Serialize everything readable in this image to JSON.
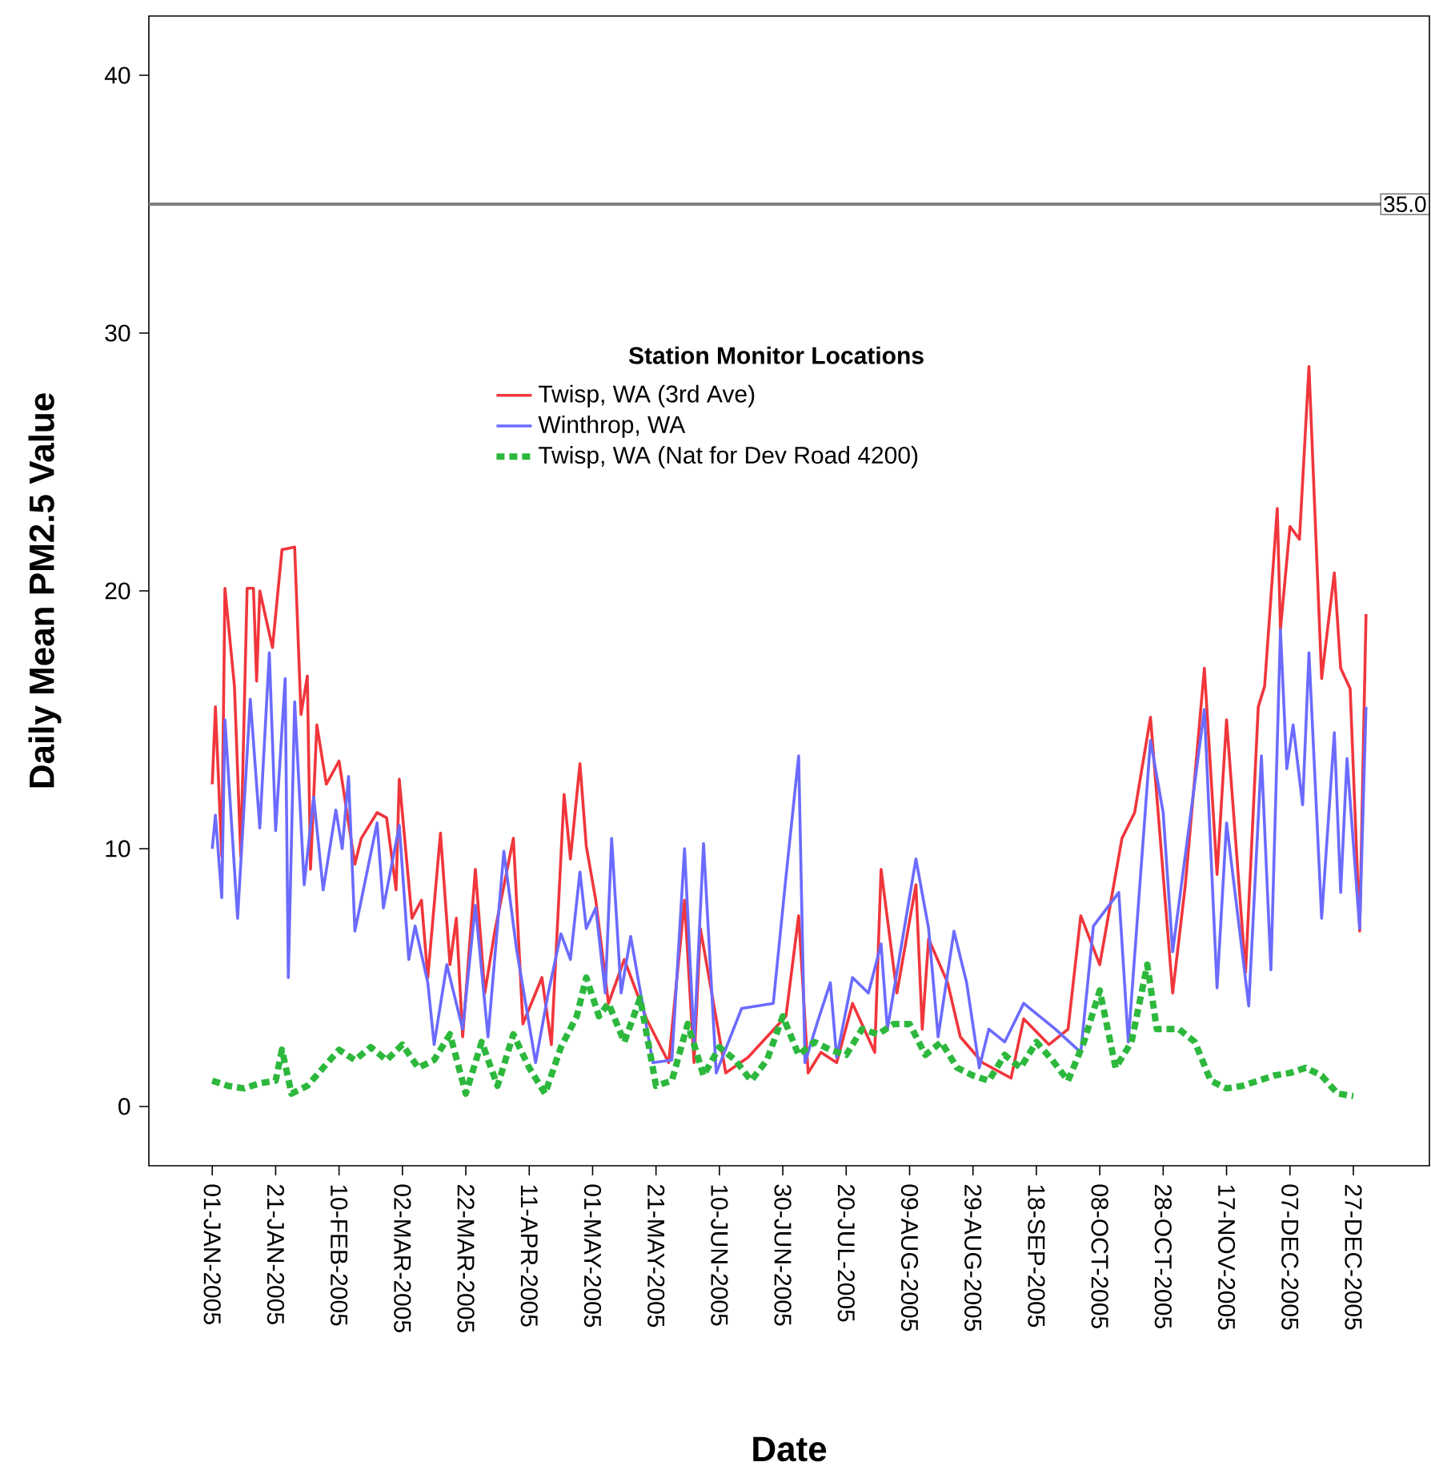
{
  "chart_data": {
    "type": "line",
    "xlabel": "Date",
    "ylabel": "Daily Mean PM2.5 Value",
    "legend_title": "Station Monitor Locations",
    "legend": "top",
    "grid": false,
    "marker": "none",
    "xlim": [
      "2004-12-12",
      "2006-01-20"
    ],
    "ylim": [
      -2.3,
      42.3
    ],
    "yticks": [
      0,
      10,
      20,
      30,
      40
    ],
    "xticks": [
      {
        "value": "2005-01-01",
        "label": "01-JAN-2005"
      },
      {
        "value": "2005-01-21",
        "label": "21-JAN-2005"
      },
      {
        "value": "2005-02-10",
        "label": "10-FEB-2005"
      },
      {
        "value": "2005-03-02",
        "label": "02-MAR-2005"
      },
      {
        "value": "2005-03-22",
        "label": "22-MAR-2005"
      },
      {
        "value": "2005-04-11",
        "label": "11-APR-2005"
      },
      {
        "value": "2005-05-01",
        "label": "01-MAY-2005"
      },
      {
        "value": "2005-05-21",
        "label": "21-MAY-2005"
      },
      {
        "value": "2005-06-10",
        "label": "10-JUN-2005"
      },
      {
        "value": "2005-06-30",
        "label": "30-JUN-2005"
      },
      {
        "value": "2005-07-20",
        "label": "20-JUL-2005"
      },
      {
        "value": "2005-08-09",
        "label": "09-AUG-2005"
      },
      {
        "value": "2005-08-29",
        "label": "29-AUG-2005"
      },
      {
        "value": "2005-09-18",
        "label": "18-SEP-2005"
      },
      {
        "value": "2005-10-08",
        "label": "08-OCT-2005"
      },
      {
        "value": "2005-10-28",
        "label": "28-OCT-2005"
      },
      {
        "value": "2005-11-17",
        "label": "17-NOV-2005"
      },
      {
        "value": "2005-12-07",
        "label": "07-DEC-2005"
      },
      {
        "value": "2005-12-27",
        "label": "27-DEC-2005"
      }
    ],
    "ref_lines": [
      {
        "axis": "y",
        "value": 35,
        "label": "35.0",
        "color": "#808080"
      }
    ],
    "series": [
      {
        "name": "Twisp, WA (3rd Ave)",
        "color": "#f0363c",
        "line_style": "solid",
        "x": [
          "2005-01-01",
          "2005-01-02",
          "2005-01-04",
          "2005-01-05",
          "2005-01-08",
          "2005-01-10",
          "2005-01-12",
          "2005-01-14",
          "2005-01-15",
          "2005-01-16",
          "2005-01-20",
          "2005-01-23",
          "2005-01-25",
          "2005-01-27",
          "2005-01-29",
          "2005-01-31",
          "2005-02-01",
          "2005-02-03",
          "2005-02-06",
          "2005-02-10",
          "2005-02-15",
          "2005-02-17",
          "2005-02-22",
          "2005-02-25",
          "2005-02-28",
          "2005-03-01",
          "2005-03-05",
          "2005-03-08",
          "2005-03-10",
          "2005-03-14",
          "2005-03-17",
          "2005-03-19",
          "2005-03-21",
          "2005-03-25",
          "2005-03-28",
          "2005-03-31",
          "2005-04-06",
          "2005-04-09",
          "2005-04-15",
          "2005-04-18",
          "2005-04-22",
          "2005-04-24",
          "2005-04-27",
          "2005-04-29",
          "2005-05-02",
          "2005-05-06",
          "2005-05-11",
          "2005-05-18",
          "2005-05-25",
          "2005-05-30",
          "2005-06-02",
          "2005-06-04",
          "2005-06-12",
          "2005-06-19",
          "2005-06-25",
          "2005-07-01",
          "2005-07-05",
          "2005-07-08",
          "2005-07-12",
          "2005-07-17",
          "2005-07-22",
          "2005-07-29",
          "2005-07-31",
          "2005-08-05",
          "2005-08-11",
          "2005-08-13",
          "2005-08-15",
          "2005-08-21",
          "2005-08-25",
          "2005-09-01",
          "2005-09-10",
          "2005-09-14",
          "2005-09-22",
          "2005-09-28",
          "2005-10-02",
          "2005-10-08",
          "2005-10-15",
          "2005-10-17",
          "2005-10-19",
          "2005-10-24",
          "2005-10-31",
          "2005-11-04",
          "2005-11-10",
          "2005-11-14",
          "2005-11-17",
          "2005-11-23",
          "2005-11-27",
          "2005-11-29",
          "2005-12-03",
          "2005-12-04",
          "2005-12-07",
          "2005-12-10",
          "2005-12-13",
          "2005-12-17",
          "2005-12-21",
          "2005-12-23",
          "2005-12-26",
          "2005-12-29",
          "2005-12-31"
        ],
        "values": [
          12.5,
          15.5,
          9.7,
          20.1,
          16.3,
          9.7,
          20.1,
          20.1,
          16.5,
          20,
          17.8,
          21.6,
          null,
          21.7,
          15.2,
          16.7,
          9.2,
          14.8,
          12.5,
          13.4,
          9.4,
          10.4,
          11.4,
          11.2,
          8.4,
          12.7,
          7.3,
          8,
          5,
          10.6,
          5.5,
          7.3,
          2.7,
          9.2,
          4.4,
          6.7,
          10.4,
          3.2,
          5,
          2.4,
          12.1,
          9.6,
          13.3,
          10.1,
          8,
          4,
          5.7,
          3.4,
          1.7,
          8,
          1.7,
          6.9,
          1.3,
          1.9,
          2.7,
          3.5,
          7.4,
          1.3,
          2.1,
          1.7,
          4,
          2.1,
          9.2,
          4.4,
          8.6,
          3,
          6.5,
          4.8,
          2.7,
          1.7,
          1.1,
          3.4,
          2.4,
          3,
          7.4,
          5.5,
          10.4,
          null,
          11.4,
          15.1,
          4.4,
          8.6,
          17,
          9,
          15,
          5.2,
          15.5,
          16.3,
          23.2,
          18.5,
          22.5,
          22,
          28.7,
          16.6,
          20.7,
          17,
          16.2,
          6.8,
          19.1
        ]
      },
      {
        "name": "Winthrop, WA",
        "color": "#6b6bff",
        "line_style": "solid",
        "x": [
          "2005-01-01",
          "2005-01-02",
          "2005-01-04",
          "2005-01-05",
          "2005-01-09",
          "2005-01-13",
          "2005-01-16",
          "2005-01-19",
          "2005-01-21",
          "2005-01-24",
          "2005-01-25",
          "2005-01-27",
          "2005-01-30",
          "2005-02-02",
          "2005-02-05",
          "2005-02-09",
          "2005-02-11",
          "2005-02-13",
          "2005-02-15",
          "2005-02-22",
          "2005-02-24",
          "2005-03-01",
          "2005-03-04",
          "2005-03-06",
          "2005-03-10",
          "2005-03-12",
          "2005-03-16",
          "2005-03-21",
          "2005-03-25",
          "2005-03-29",
          "2005-04-03",
          "2005-04-07",
          "2005-04-13",
          "2005-04-17",
          "2005-04-21",
          "2005-04-24",
          "2005-04-27",
          "2005-04-29",
          "2005-05-02",
          "2005-05-05",
          "2005-05-07",
          "2005-05-10",
          "2005-05-13",
          "2005-05-20",
          "2005-05-26",
          "2005-05-30",
          "2005-06-02",
          "2005-06-05",
          "2005-06-09",
          "2005-06-17",
          "2005-06-27",
          "2005-07-01",
          "2005-07-05",
          "2005-07-07",
          "2005-07-11",
          "2005-07-15",
          "2005-07-17",
          "2005-07-22",
          "2005-07-27",
          "2005-07-31",
          "2005-08-02",
          "2005-08-05",
          "2005-08-11",
          "2005-08-15",
          "2005-08-18",
          "2005-08-23",
          "2005-08-27",
          "2005-08-31",
          "2005-09-03",
          "2005-09-08",
          "2005-09-14",
          "2005-09-18",
          "2005-09-24",
          "2005-10-02",
          "2005-10-06",
          "2005-10-14",
          "2005-10-17",
          "2005-10-24",
          "2005-10-28",
          "2005-10-31",
          "2005-11-10",
          "2005-11-14",
          "2005-11-17",
          "2005-11-24",
          "2005-11-28",
          "2005-12-01",
          "2005-12-04",
          "2005-12-06",
          "2005-12-08",
          "2005-12-11",
          "2005-12-13",
          "2005-12-17",
          "2005-12-21",
          "2005-12-23",
          "2005-12-25",
          "2005-12-29",
          "2005-12-31"
        ],
        "values": [
          10,
          11.3,
          8.1,
          15,
          7.3,
          15.8,
          10.8,
          17.6,
          10.7,
          16.6,
          5,
          15.7,
          8.6,
          12,
          8.4,
          11.5,
          10,
          12.8,
          6.8,
          11,
          7.7,
          10.9,
          5.7,
          7,
          4.8,
          2.4,
          5.5,
          3,
          7.8,
          2.7,
          9.9,
          6.1,
          1.7,
          4.4,
          6.7,
          5.7,
          9.1,
          6.9,
          7.7,
          4.4,
          10.4,
          4.4,
          6.6,
          1.7,
          1.8,
          10,
          2.5,
          10.2,
          1.3,
          3.8,
          4,
          8.9,
          13.6,
          1.7,
          3.3,
          4.8,
          1.9,
          5,
          4.4,
          6.3,
          3,
          5.2,
          9.6,
          6.9,
          2.7,
          6.8,
          4.8,
          1.5,
          3,
          2.5,
          4,
          3.6,
          3,
          2.1,
          7,
          8.3,
          2.5,
          14.2,
          11.4,
          6,
          15.4,
          4.6,
          11,
          3.9,
          13.6,
          5.3,
          18.5,
          13.1,
          14.8,
          11.7,
          17.6,
          7.3,
          14.5,
          8.3,
          13.5,
          6.9,
          15.5
        ]
      },
      {
        "name": "Twisp, WA (Nat for Dev Road 4200)",
        "color": "#2db83d",
        "line_style": "dashed",
        "x": [
          "2005-01-01",
          "2005-01-06",
          "2005-01-11",
          "2005-01-16",
          "2005-01-21",
          "2005-01-23",
          "2005-01-26",
          "2005-01-31",
          "2005-02-05",
          "2005-02-10",
          "2005-02-15",
          "2005-02-20",
          "2005-02-25",
          "2005-03-02",
          "2005-03-07",
          "2005-03-12",
          "2005-03-17",
          "2005-03-22",
          "2005-03-27",
          "2005-04-01",
          "2005-04-06",
          "2005-04-11",
          "2005-04-16",
          "2005-04-21",
          "2005-04-26",
          "2005-04-29",
          "2005-05-03",
          "2005-05-06",
          "2005-05-11",
          "2005-05-16",
          "2005-05-21",
          "2005-05-26",
          "2005-05-31",
          "2005-06-05",
          "2005-06-10",
          "2005-06-15",
          "2005-06-20",
          "2005-06-25",
          "2005-06-30",
          "2005-07-05",
          "2005-07-10",
          "2005-07-15",
          "2005-07-20",
          "2005-07-25",
          "2005-07-30",
          "2005-08-04",
          "2005-08-09",
          "2005-08-14",
          "2005-08-19",
          "2005-08-24",
          "2005-08-29",
          "2005-09-03",
          "2005-09-08",
          "2005-09-13",
          "2005-09-18",
          "2005-09-23",
          "2005-09-28",
          "2005-10-03",
          "2005-10-08",
          "2005-10-13",
          "2005-10-18",
          "2005-10-23",
          "2005-10-26",
          "2005-11-02",
          "2005-11-07",
          "2005-11-12",
          "2005-11-17",
          "2005-11-22",
          "2005-11-27",
          "2005-12-02",
          "2005-12-07",
          "2005-12-12",
          "2005-12-17",
          "2005-12-22",
          "2005-12-27"
        ],
        "values": [
          1,
          0.8,
          0.7,
          0.9,
          1,
          2.2,
          0.5,
          0.8,
          1.5,
          2.2,
          1.8,
          2.3,
          1.8,
          2.4,
          1.5,
          1.8,
          2.8,
          0.5,
          2.5,
          0.8,
          2.8,
          1.5,
          0.5,
          2.3,
          3.5,
          5,
          3.5,
          4,
          2.5,
          4.2,
          0.8,
          1,
          3.2,
          1.2,
          2.3,
          1.8,
          1,
          1.8,
          3.5,
          2,
          2.5,
          2.2,
          2,
          3,
          2.8,
          3.2,
          3.2,
          2,
          2.5,
          1.5,
          1.2,
          1,
          2,
          1.5,
          2.5,
          1.8,
          1,
          2.5,
          4.5,
          1.5,
          2.5,
          5.5,
          3,
          3,
          2.5,
          1,
          0.7,
          0.8,
          1,
          1.2,
          1.3,
          1.5,
          1.2,
          0.5,
          0.4
        ]
      }
    ]
  }
}
